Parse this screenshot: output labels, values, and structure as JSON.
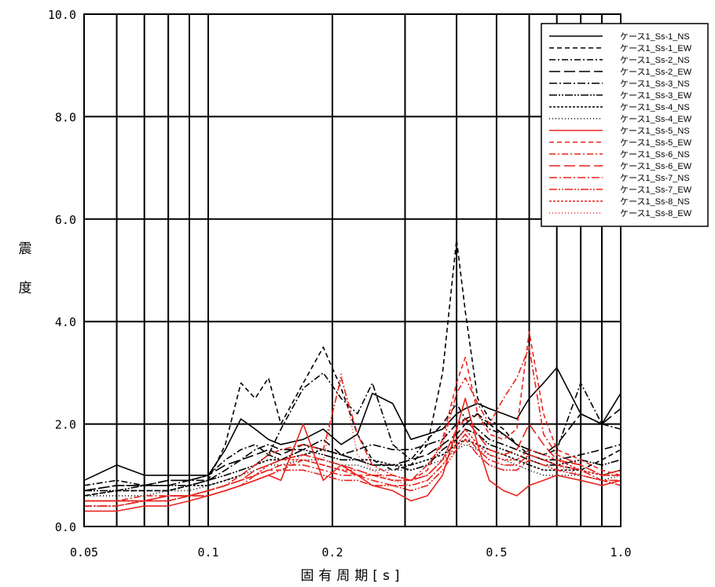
{
  "chart_data": {
    "type": "line",
    "title": "",
    "xlabel": "固有周期[s]",
    "ylabel": "震度",
    "x_scale": "log",
    "xlim": [
      0.05,
      1.0
    ],
    "ylim": [
      0.0,
      10.0
    ],
    "grid": true,
    "legend_position": "top-right",
    "x_ticks": [
      0.05,
      0.1,
      0.2,
      0.5,
      1.0
    ],
    "x_tick_labels": [
      "0.05",
      "0.1",
      "0.2",
      "0.5",
      "1.0"
    ],
    "y_ticks": [
      0,
      2,
      4,
      6,
      8,
      10
    ],
    "y_tick_labels": [
      "0.0",
      "2.0",
      "4.0",
      "6.0",
      "8.0",
      "10.0"
    ],
    "x_grid": [
      0.05,
      0.06,
      0.07,
      0.08,
      0.09,
      0.1,
      0.2,
      0.3,
      0.4,
      0.5,
      0.6,
      0.7,
      0.8,
      0.9,
      1.0
    ],
    "x": [
      0.05,
      0.06,
      0.07,
      0.08,
      0.09,
      0.1,
      0.11,
      0.12,
      0.13,
      0.14,
      0.15,
      0.17,
      0.19,
      0.21,
      0.23,
      0.25,
      0.28,
      0.31,
      0.34,
      0.37,
      0.4,
      0.42,
      0.45,
      0.48,
      0.52,
      0.56,
      0.6,
      0.65,
      0.7,
      0.8,
      0.9,
      1.0
    ],
    "series": [
      {
        "name": "ケース1_Ss-1_NS",
        "color": "#000000",
        "dash": "",
        "values": [
          0.9,
          1.2,
          1.0,
          1.0,
          1.0,
          1.0,
          1.5,
          2.1,
          1.9,
          1.7,
          1.6,
          1.7,
          1.9,
          1.6,
          1.8,
          2.6,
          2.4,
          1.7,
          1.8,
          1.9,
          2.2,
          2.3,
          2.4,
          2.3,
          2.2,
          2.1,
          2.5,
          2.8,
          3.1,
          2.2,
          2.0,
          2.6
        ]
      },
      {
        "name": "ケース1_Ss-1_EW",
        "color": "#000000",
        "dash": "6,4",
        "values": [
          0.6,
          0.7,
          0.7,
          0.7,
          0.8,
          0.9,
          1.6,
          2.8,
          2.5,
          2.9,
          2.0,
          2.8,
          3.5,
          2.7,
          1.8,
          1.3,
          1.1,
          1.2,
          1.6,
          3.0,
          5.6,
          4.2,
          2.5,
          2.1,
          1.9,
          1.6,
          1.4,
          1.3,
          1.2,
          1.1,
          1.3,
          1.5
        ]
      },
      {
        "name": "ケース1_Ss-2_NS",
        "color": "#000000",
        "dash": "8,3,2,3",
        "values": [
          0.8,
          0.9,
          0.8,
          0.9,
          0.9,
          1.0,
          1.3,
          1.5,
          1.6,
          1.4,
          1.9,
          2.7,
          3.0,
          2.5,
          2.2,
          2.8,
          1.6,
          1.3,
          1.7,
          2.0,
          2.4,
          2.1,
          2.2,
          1.9,
          1.8,
          1.6,
          1.5,
          1.4,
          1.5,
          2.8,
          2.0,
          1.9
        ]
      },
      {
        "name": "ケース1_Ss-2_EW",
        "color": "#000000",
        "dash": "14,5",
        "values": [
          0.7,
          0.8,
          0.8,
          0.9,
          0.9,
          1.0,
          1.2,
          1.3,
          1.4,
          1.5,
          1.4,
          1.6,
          1.5,
          1.4,
          1.3,
          1.2,
          1.2,
          1.3,
          1.4,
          1.6,
          1.8,
          2.0,
          2.2,
          2.0,
          1.8,
          1.6,
          1.5,
          1.4,
          1.6,
          2.2,
          2.0,
          2.3
        ]
      },
      {
        "name": "ケース1_Ss-3_NS",
        "color": "#000000",
        "dash": "10,3,2,3",
        "values": [
          0.7,
          0.8,
          0.8,
          0.8,
          0.9,
          0.9,
          1.1,
          1.3,
          1.5,
          1.6,
          1.5,
          1.5,
          1.7,
          1.4,
          1.5,
          1.6,
          1.5,
          1.5,
          1.6,
          1.7,
          2.0,
          2.1,
          1.9,
          1.7,
          1.6,
          1.5,
          1.4,
          1.3,
          1.3,
          1.4,
          1.5,
          1.6
        ]
      },
      {
        "name": "ケース1_Ss-3_EW",
        "color": "#000000",
        "dash": "10,2,2,2,2,2",
        "values": [
          0.7,
          0.7,
          0.8,
          0.8,
          0.8,
          0.9,
          1.0,
          1.1,
          1.2,
          1.4,
          1.3,
          1.5,
          1.4,
          1.3,
          1.3,
          1.2,
          1.2,
          1.1,
          1.2,
          1.5,
          1.7,
          1.9,
          1.8,
          1.6,
          1.5,
          1.4,
          1.3,
          1.2,
          1.2,
          1.3,
          1.2,
          1.3
        ]
      },
      {
        "name": "ケース1_Ss-4_NS",
        "color": "#000000",
        "dash": "3,2",
        "values": [
          0.6,
          0.7,
          0.7,
          0.7,
          0.8,
          0.8,
          0.9,
          1.0,
          1.2,
          1.3,
          1.3,
          1.4,
          1.5,
          1.4,
          1.3,
          1.3,
          1.2,
          1.2,
          1.3,
          1.4,
          1.6,
          1.7,
          1.6,
          1.5,
          1.4,
          1.3,
          1.2,
          1.1,
          1.1,
          1.1,
          1.0,
          1.1
        ]
      },
      {
        "name": "ケース1_Ss-4_EW",
        "color": "#000000",
        "dash": "1,3",
        "values": [
          0.6,
          0.6,
          0.6,
          0.7,
          0.7,
          0.8,
          0.9,
          1.0,
          1.1,
          1.2,
          1.2,
          1.3,
          1.3,
          1.2,
          1.2,
          1.1,
          1.1,
          1.1,
          1.2,
          1.3,
          1.5,
          1.6,
          1.5,
          1.4,
          1.3,
          1.2,
          1.1,
          1.0,
          1.0,
          1.0,
          0.9,
          1.0
        ]
      },
      {
        "name": "ケース1_Ss-5_NS",
        "color": "#e8251f",
        "dash": "",
        "values": [
          0.3,
          0.3,
          0.4,
          0.4,
          0.5,
          0.6,
          0.7,
          0.8,
          0.9,
          1.0,
          0.9,
          2.0,
          0.9,
          1.2,
          1.0,
          0.8,
          0.7,
          0.5,
          0.6,
          1.0,
          1.9,
          2.5,
          1.6,
          0.9,
          0.7,
          0.6,
          0.8,
          0.9,
          1.0,
          0.9,
          0.8,
          0.9
        ]
      },
      {
        "name": "ケース1_Ss-5_EW",
        "color": "#e8251f",
        "dash": "6,4",
        "values": [
          0.5,
          0.5,
          0.5,
          0.6,
          0.6,
          0.7,
          0.8,
          0.9,
          1.0,
          1.1,
          1.1,
          1.3,
          1.2,
          1.1,
          1.0,
          1.0,
          0.9,
          0.9,
          1.1,
          1.7,
          2.8,
          3.3,
          2.2,
          1.8,
          1.7,
          1.9,
          3.8,
          2.2,
          1.5,
          1.3,
          1.1,
          1.0
        ]
      },
      {
        "name": "ケース1_Ss-6_NS",
        "color": "#e8251f",
        "dash": "8,3,2,3",
        "values": [
          0.5,
          0.5,
          0.6,
          0.6,
          0.6,
          0.7,
          0.8,
          1.0,
          1.2,
          1.4,
          1.5,
          1.6,
          1.5,
          2.9,
          1.8,
          1.2,
          1.0,
          0.9,
          1.2,
          1.6,
          2.6,
          2.9,
          2.4,
          2.0,
          2.5,
          2.9,
          3.5,
          1.8,
          1.4,
          1.2,
          1.0,
          1.1
        ]
      },
      {
        "name": "ケース1_Ss-6_EW",
        "color": "#e8251f",
        "dash": "14,5",
        "values": [
          0.5,
          0.5,
          0.5,
          0.6,
          0.6,
          0.7,
          0.8,
          0.9,
          1.1,
          1.2,
          1.3,
          1.4,
          1.3,
          1.2,
          1.1,
          1.0,
          1.0,
          0.9,
          1.0,
          1.3,
          1.9,
          2.1,
          1.8,
          1.5,
          1.4,
          1.5,
          2.0,
          1.6,
          1.3,
          1.2,
          1.0,
          1.0
        ]
      },
      {
        "name": "ケース1_Ss-7_NS",
        "color": "#e8251f",
        "dash": "10,3,2,3",
        "values": [
          0.4,
          0.4,
          0.5,
          0.5,
          0.6,
          0.6,
          0.7,
          0.8,
          1.0,
          1.1,
          1.2,
          1.2,
          1.1,
          1.0,
          1.0,
          0.9,
          0.8,
          0.8,
          0.9,
          1.2,
          1.6,
          1.8,
          1.5,
          1.3,
          1.2,
          1.2,
          1.4,
          1.3,
          1.2,
          1.1,
          0.9,
          0.9
        ]
      },
      {
        "name": "ケース1_Ss-7_EW",
        "color": "#e8251f",
        "dash": "10,2,2,2,2,2",
        "values": [
          0.4,
          0.4,
          0.5,
          0.5,
          0.6,
          0.6,
          0.7,
          0.8,
          0.9,
          1.0,
          1.1,
          1.1,
          1.0,
          0.9,
          0.9,
          0.8,
          0.8,
          0.7,
          0.8,
          1.1,
          1.5,
          1.7,
          1.4,
          1.2,
          1.1,
          1.1,
          1.3,
          1.2,
          1.1,
          1.0,
          0.9,
          0.8
        ]
      },
      {
        "name": "ケース1_Ss-8_NS",
        "color": "#e8251f",
        "dash": "3,2",
        "values": [
          0.5,
          0.5,
          0.5,
          0.6,
          0.6,
          0.7,
          0.8,
          0.9,
          1.0,
          1.2,
          1.3,
          1.3,
          1.2,
          1.1,
          1.1,
          1.0,
          0.9,
          0.9,
          1.0,
          1.3,
          1.7,
          1.9,
          1.6,
          1.4,
          1.3,
          1.3,
          1.5,
          1.4,
          1.3,
          1.1,
          1.0,
          1.0
        ]
      },
      {
        "name": "ケース1_Ss-8_EW",
        "color": "#e8251f",
        "dash": "1,3",
        "values": [
          0.5,
          0.5,
          0.5,
          0.5,
          0.6,
          0.6,
          0.7,
          0.8,
          0.9,
          1.0,
          1.1,
          1.4,
          1.3,
          3.0,
          1.4,
          1.1,
          0.9,
          0.8,
          0.9,
          1.2,
          1.6,
          1.8,
          1.5,
          1.3,
          1.2,
          1.2,
          1.4,
          1.3,
          1.2,
          1.0,
          0.9,
          0.9
        ]
      }
    ]
  }
}
